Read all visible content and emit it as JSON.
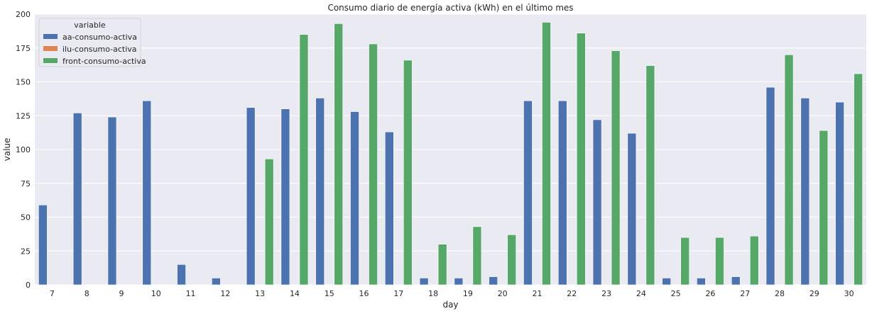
{
  "chart_data": {
    "type": "bar",
    "title": "Consumo diario de energía activa (kWh) en el último mes",
    "xlabel": "day",
    "ylabel": "value",
    "ylim": [
      0,
      200
    ],
    "yticks": [
      0,
      25,
      50,
      75,
      100,
      125,
      150,
      175,
      200
    ],
    "grid": true,
    "legend": {
      "title": "variable",
      "placement": "top-left"
    },
    "categories": [
      "7",
      "8",
      "9",
      "10",
      "11",
      "12",
      "13",
      "14",
      "15",
      "16",
      "17",
      "18",
      "19",
      "20",
      "21",
      "22",
      "23",
      "24",
      "25",
      "26",
      "27",
      "28",
      "29",
      "30"
    ],
    "series": [
      {
        "name": "aa-consumo-activa",
        "color": "#4c72b0",
        "values": [
          59,
          127,
          124,
          136,
          15,
          5,
          131,
          130,
          138,
          128,
          113,
          5,
          5,
          6,
          136,
          136,
          122,
          112,
          5,
          5,
          6,
          146,
          138,
          135
        ]
      },
      {
        "name": "ilu-consumo-activa",
        "color": "#dd8452",
        "values": [
          0,
          0,
          0,
          0,
          0,
          0,
          0,
          0,
          0,
          0,
          0,
          0,
          0,
          0,
          0,
          0,
          0,
          0,
          0,
          0,
          0,
          0,
          0,
          0
        ]
      },
      {
        "name": "front-consumo-activa",
        "color": "#55a868",
        "values": [
          0,
          0,
          0,
          0,
          0,
          0,
          93,
          185,
          193,
          178,
          166,
          30,
          43,
          37,
          194,
          186,
          173,
          162,
          35,
          35,
          36,
          170,
          114,
          156
        ]
      }
    ]
  }
}
